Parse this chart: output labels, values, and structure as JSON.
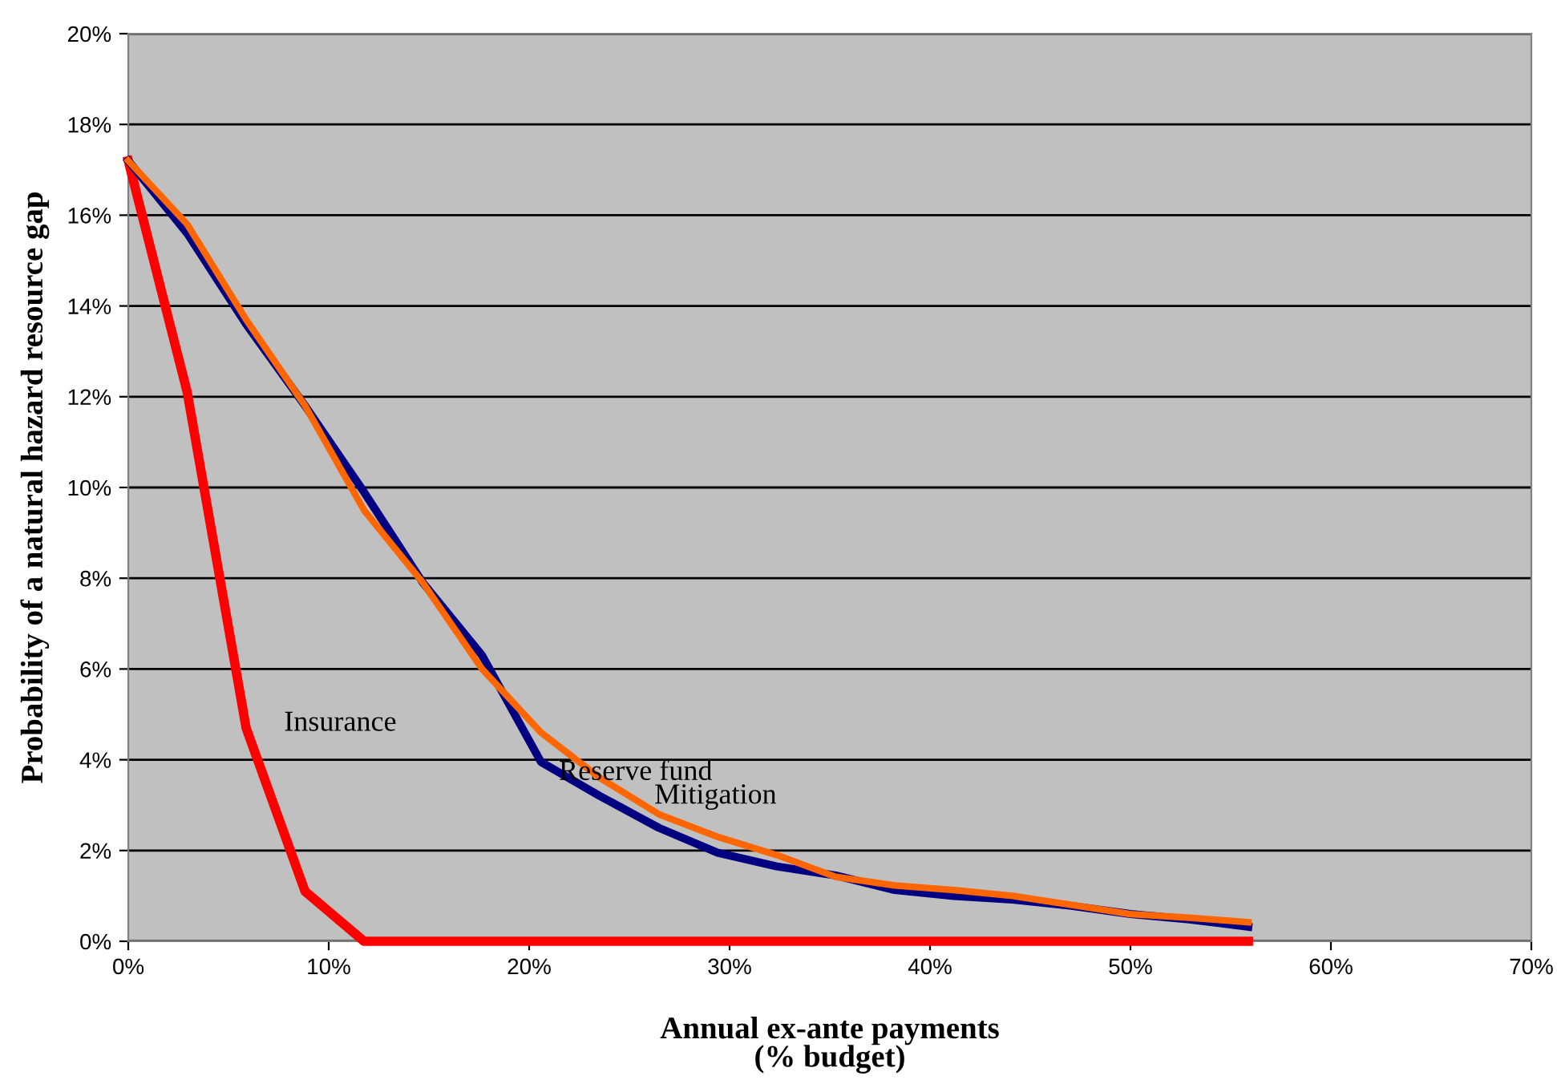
{
  "chart_data": {
    "type": "line",
    "xlabel": "Annual ex-ante payments\n(% budget)",
    "ylabel": "Probability of a natural hazard resource gap",
    "x": [
      0,
      2.94,
      5.88,
      8.82,
      11.76,
      14.7,
      17.65,
      20.59,
      23.53,
      26.47,
      29.41,
      32.35,
      35.29,
      38.24,
      41.18,
      44.12,
      47.06,
      50,
      52.94,
      55.88
    ],
    "series": [
      {
        "name": "Insurance",
        "color": "#ff0000",
        "values": [
          17.2,
          12.1,
          4.7,
          1.1,
          0,
          0,
          0,
          0,
          0,
          0,
          0,
          0,
          0,
          0,
          0,
          0,
          0,
          0,
          0,
          0
        ]
      },
      {
        "name": "Reserve fund",
        "color": "#000080",
        "values": [
          17.2,
          15.6,
          13.6,
          11.8,
          9.9,
          7.9,
          6.3,
          3.95,
          3.2,
          2.5,
          1.95,
          1.65,
          1.45,
          1.13,
          1.0,
          0.92,
          0.78,
          0.6,
          0.48,
          0.32
        ]
      },
      {
        "name": "Mitigation",
        "color": "#ff6600",
        "values": [
          17.2,
          15.8,
          13.7,
          11.8,
          9.5,
          7.9,
          6.0,
          4.6,
          3.6,
          2.8,
          2.3,
          1.9,
          1.42,
          1.23,
          1.13,
          1.0,
          0.8,
          0.6,
          0.52,
          0.42
        ]
      }
    ],
    "xlim": [
      0,
      70
    ],
    "xticks": [
      {
        "value": 0,
        "label": "0%"
      },
      {
        "value": 10,
        "label": "10%"
      },
      {
        "value": 20,
        "label": "20%"
      },
      {
        "value": 30,
        "label": "30%"
      },
      {
        "value": 40,
        "label": "40%"
      },
      {
        "value": 50,
        "label": "50%"
      },
      {
        "value": 60,
        "label": "60%"
      },
      {
        "value": 70,
        "label": "70%"
      }
    ],
    "ylim": [
      0,
      20
    ],
    "yticks": [
      {
        "value": 0,
        "label": "0%"
      },
      {
        "value": 2,
        "label": "2%"
      },
      {
        "value": 4,
        "label": "4%"
      },
      {
        "value": 6,
        "label": "6%"
      },
      {
        "value": 8,
        "label": "8%"
      },
      {
        "value": 10,
        "label": "10%"
      },
      {
        "value": 12,
        "label": "12%"
      },
      {
        "value": 14,
        "label": "14%"
      },
      {
        "value": 16,
        "label": "16%"
      },
      {
        "value": 18,
        "label": "18%"
      },
      {
        "value": 20,
        "label": "20%"
      }
    ],
    "grid": "y",
    "legend": false,
    "marker": "none",
    "line_style": "solid"
  }
}
